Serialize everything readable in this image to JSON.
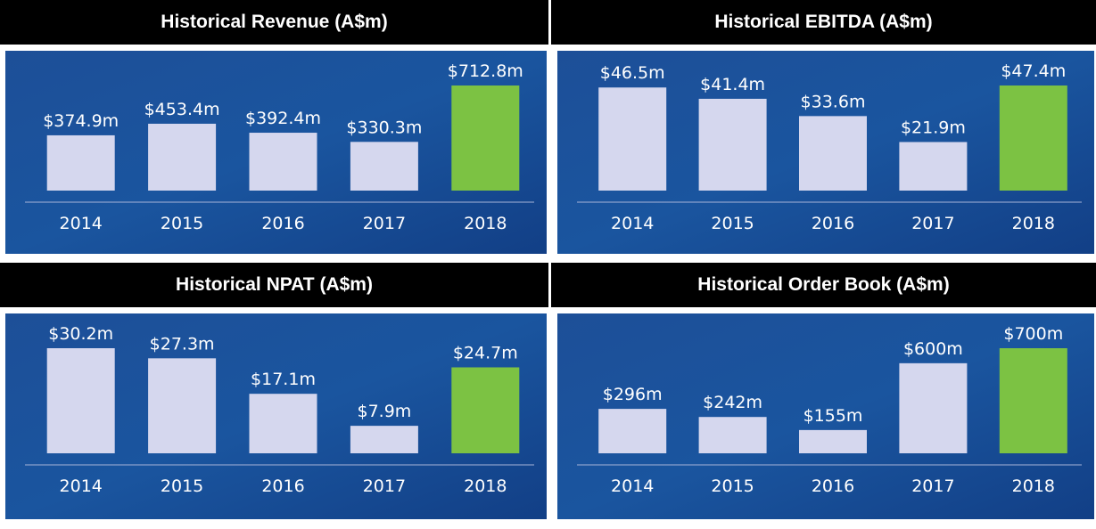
{
  "chart_data": [
    {
      "type": "bar",
      "title": "Historical Revenue (A$m)",
      "categories": [
        "2014",
        "2015",
        "2016",
        "2017",
        "2018"
      ],
      "values": [
        374.9,
        453.4,
        392.4,
        330.3,
        712.8
      ],
      "value_labels": [
        "$374.9m",
        "$453.4m",
        "$392.4m",
        "$330.3m",
        "$712.8m"
      ],
      "colors": [
        "#d5d7ee",
        "#d5d7ee",
        "#d5d7ee",
        "#d5d7ee",
        "#7cc243"
      ]
    },
    {
      "type": "bar",
      "title": "Historical EBITDA (A$m)",
      "categories": [
        "2014",
        "2015",
        "2016",
        "2017",
        "2018"
      ],
      "values": [
        46.5,
        41.4,
        33.6,
        21.9,
        47.4
      ],
      "value_labels": [
        "$46.5m",
        "$41.4m",
        "$33.6m",
        "$21.9m",
        "$47.4m"
      ],
      "colors": [
        "#d5d7ee",
        "#d5d7ee",
        "#d5d7ee",
        "#d5d7ee",
        "#7cc243"
      ]
    },
    {
      "type": "bar",
      "title": "Historical NPAT (A$m)",
      "categories": [
        "2014",
        "2015",
        "2016",
        "2017",
        "2018"
      ],
      "values": [
        30.2,
        27.3,
        17.1,
        7.9,
        24.7
      ],
      "value_labels": [
        "$30.2m",
        "$27.3m",
        "$17.1m",
        "$7.9m",
        "$24.7m"
      ],
      "colors": [
        "#d5d7ee",
        "#d5d7ee",
        "#d5d7ee",
        "#d5d7ee",
        "#7cc243"
      ]
    },
    {
      "type": "bar",
      "title": "Historical Order Book (A$m)",
      "categories": [
        "2014",
        "2015",
        "2016",
        "2017",
        "2018"
      ],
      "values": [
        296,
        242,
        155,
        600,
        700
      ],
      "value_labels": [
        "$296m",
        "$242m",
        "$155m",
        "$600m",
        "$700m"
      ],
      "colors": [
        "#d5d7ee",
        "#d5d7ee",
        "#d5d7ee",
        "#d5d7ee",
        "#7cc243"
      ]
    }
  ]
}
